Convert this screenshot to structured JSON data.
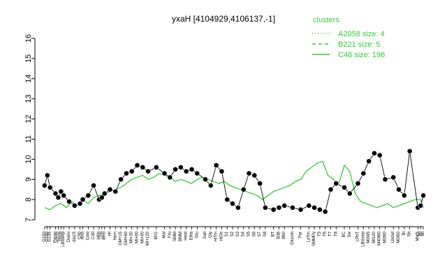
{
  "chart_data": {
    "type": "line",
    "title": "yxaH [4104929,4106137,-1]",
    "ylim": [
      7,
      16
    ],
    "yticks": [
      7,
      8,
      9,
      10,
      11,
      12,
      13,
      14,
      15,
      16
    ],
    "legend": {
      "title": "clusters",
      "placement": "top-right",
      "entries": [
        {
          "label": "A2058 size: 4",
          "style": "dotted"
        },
        {
          "label": "B221 size: 5",
          "style": "dashed"
        },
        {
          "label": "C48 size: 196",
          "style": "solid"
        }
      ]
    },
    "x_labels": [
      "G150",
      "G180",
      "G135",
      "Paraq",
      "H2O2",
      "Oxctl",
      "LBGexp",
      "Diami",
      "dia15",
      "C90",
      "dia5",
      "Cold",
      "C30",
      "HPh",
      "LPh",
      "aero",
      "nit",
      "ferm",
      "GM+15",
      "GM+60",
      "Mt+30",
      "Mt+60",
      "Mt+90",
      "Mt+120",
      "M/G",
      "Mal",
      "Fru",
      "SMM",
      "BMM",
      "Heat",
      "Etha",
      "Glu",
      "Salt",
      "Gly",
      "HiTm",
      "HiOs",
      "S1",
      "S2",
      "S3",
      "S4",
      "S5",
      "S6",
      "S7",
      "S8",
      "BT",
      "B36",
      "B60",
      "Glucon",
      "Pyr",
      "LoTm",
      "SMMPy",
      "T5",
      "T6",
      "T7",
      "T8",
      "BC",
      "Sw",
      "LPhT",
      "LBGstat",
      "M0t45",
      "Mt120",
      "M40t60",
      "M0t90",
      "Lbstat",
      "M0t90",
      "Bl",
      "Sh",
      "Mt45",
      "Ml",
      "Mt"
    ],
    "x_positions": [
      1,
      2,
      3,
      5,
      6,
      7,
      8,
      10,
      12,
      14,
      15,
      17,
      19,
      21,
      22,
      23,
      25,
      27,
      29,
      31,
      33,
      35,
      37,
      39,
      42,
      45,
      47,
      49,
      51,
      53,
      55,
      57,
      60,
      62,
      64,
      66,
      68,
      70,
      72,
      74,
      76,
      78,
      80,
      82,
      85,
      87,
      89,
      92,
      95,
      98,
      100,
      102,
      104,
      106,
      108,
      111,
      113,
      116,
      118,
      120,
      122,
      124,
      126,
      129,
      131,
      133,
      135,
      138,
      139,
      140
    ],
    "x_range": [
      0,
      141
    ],
    "series": [
      {
        "style": "solid",
        "x": [
          1,
          3,
          5,
          7,
          9,
          11,
          13,
          15,
          17,
          19,
          21,
          23,
          25,
          27,
          29,
          31,
          33,
          35,
          37,
          39,
          41,
          43,
          45,
          47,
          49,
          51,
          53,
          55,
          57,
          59,
          61,
          63,
          65,
          67,
          69,
          71,
          73,
          75,
          77,
          79,
          81,
          83,
          85,
          87,
          89,
          91,
          93,
          95,
          97,
          99,
          101,
          103,
          105,
          107,
          109,
          111,
          113,
          115,
          117,
          119,
          121,
          123,
          125,
          127,
          129,
          131,
          133,
          135,
          137,
          139,
          140
        ],
        "y": [
          7.6,
          7.5,
          7.7,
          7.8,
          7.6,
          7.9,
          7.7,
          8.0,
          7.8,
          8.1,
          8.2,
          8.3,
          8.4,
          8.5,
          8.6,
          8.8,
          9.0,
          9.1,
          9.2,
          9.0,
          9.1,
          9.3,
          9.2,
          9.1,
          8.9,
          9.0,
          8.9,
          8.8,
          9.0,
          9.1,
          9.0,
          8.9,
          8.8,
          8.9,
          8.7,
          8.6,
          8.5,
          8.4,
          8.3,
          8.2,
          8.0,
          8.2,
          8.4,
          8.5,
          8.6,
          8.7,
          8.9,
          9.0,
          9.4,
          9.6,
          9.8,
          9.9,
          9.2,
          9.0,
          8.8,
          9.7,
          9.4,
          8.3,
          7.9,
          7.8,
          7.7,
          7.6,
          7.7,
          7.8,
          7.6,
          7.7,
          7.8,
          7.9,
          8.0,
          8.0,
          7.6
        ]
      },
      {
        "style": "markers",
        "x": [
          1,
          2,
          3,
          5,
          6,
          7,
          8,
          10,
          12,
          14,
          15,
          17,
          19,
          21,
          22,
          23,
          25,
          27,
          29,
          31,
          33,
          35,
          37,
          39,
          42,
          45,
          47,
          49,
          51,
          53,
          55,
          57,
          60,
          62,
          64,
          66,
          68,
          70,
          72,
          74,
          76,
          78,
          80,
          82,
          85,
          87,
          89,
          92,
          95,
          98,
          100,
          102,
          104,
          106,
          108,
          111,
          113,
          116,
          118,
          120,
          122,
          124,
          126,
          129,
          131,
          133,
          135,
          138,
          139,
          140
        ],
        "y": [
          8.7,
          9.2,
          8.6,
          8.3,
          8.1,
          8.4,
          8.2,
          7.9,
          7.7,
          7.8,
          8.0,
          8.2,
          8.7,
          8.0,
          8.1,
          8.3,
          8.5,
          8.4,
          9.0,
          9.3,
          9.4,
          9.7,
          9.6,
          9.4,
          9.6,
          9.3,
          9.1,
          9.5,
          9.6,
          9.4,
          9.5,
          9.3,
          9.0,
          8.7,
          9.7,
          9.4,
          8.0,
          7.8,
          7.6,
          8.5,
          9.3,
          9.2,
          8.8,
          7.6,
          7.5,
          7.6,
          7.7,
          7.6,
          7.5,
          7.7,
          7.6,
          7.5,
          7.4,
          8.5,
          8.8,
          8.6,
          8.3,
          8.8,
          9.3,
          9.9,
          10.3,
          10.2,
          9.0,
          9.1,
          8.5,
          8.2,
          10.4,
          7.6,
          7.7,
          8.2
        ]
      }
    ]
  }
}
